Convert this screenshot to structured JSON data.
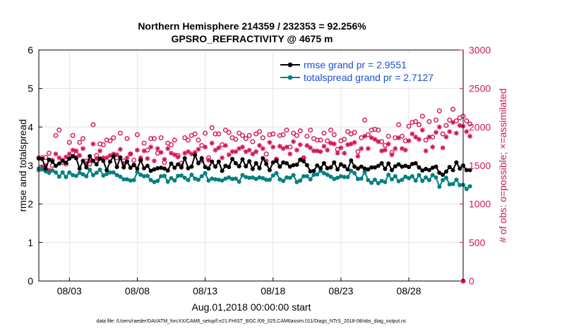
{
  "chart_data": {
    "type": "line",
    "title_line1": "Northern Hemisphere 214359 / 232353 = 92.256%",
    "title_line2": "GPSRO_REFRACTIVITY @ 4675 m",
    "xlabel": "Aug.01,2018 00:00:00 start",
    "ylabel": "rmse and totalspread",
    "ylabel_right": "# of obs: o=possible; ×=assimilated",
    "footnote": "data file: /Users/raeder/DAI/ATM_forcXX/CAM6_setup/f.e21.FHIST_BGC.f09_025.CAM6assim.011/Diags_NTrS_2018-08/obs_diag_output.nc",
    "xlim": [
      0.75,
      32.0
    ],
    "ylim": [
      0,
      6
    ],
    "ylim_right": [
      0,
      3000
    ],
    "x_ticks": [
      3,
      8,
      13,
      18,
      23,
      28
    ],
    "x_tick_labels": [
      "08/03",
      "08/08",
      "08/13",
      "08/18",
      "08/23",
      "08/28"
    ],
    "y_ticks": [
      0,
      1,
      2,
      3,
      4,
      5,
      6
    ],
    "y_tick_labels": [
      "0",
      "1",
      "2",
      "3",
      "4",
      "5",
      "6"
    ],
    "y_ticks_right": [
      0,
      500,
      1000,
      1500,
      2000,
      2500,
      3000
    ],
    "y_tick_labels_right": [
      "0",
      "500",
      "1000",
      "1500",
      "2000",
      "2500",
      "3000"
    ],
    "x_step_days": 0.25,
    "legend": [
      "rmse grand pr = 2.9551",
      "totalspread grand pr = 2.7127"
    ],
    "colors": {
      "rmse": "#000000",
      "spread": "#008080",
      "obs": "#d4145a",
      "legend_text": "#1a4fd6",
      "grid": "#e4e4e4"
    },
    "series": [
      {
        "name": "rmse",
        "values": [
          3.18,
          3.17,
          2.92,
          3.15,
          3.1,
          2.99,
          3.05,
          3.12,
          3.07,
          3.18,
          3.24,
          3.19,
          2.92,
          3.12,
          2.95,
          3.24,
          3.12,
          3.03,
          3.18,
          3.12,
          2.88,
          3.1,
          3.24,
          2.96,
          3.21,
          2.95,
          3.1,
          2.94,
          3.01,
          2.92,
          3.14,
          2.93,
          2.99,
          2.86,
          2.9,
          2.93,
          2.94,
          2.92,
          2.87,
          3.05,
          2.94,
          3.03,
          2.95,
          3.19,
          2.93,
          2.97,
          3.27,
          3.06,
          3.19,
          2.96,
          2.92,
          3.1,
          2.97,
          3.1,
          2.86,
          2.99,
          2.96,
          3.17,
          3.06,
          2.98,
          3.16,
          2.98,
          3.11,
          2.91,
          3.06,
          2.93,
          3.19,
          3.04,
          2.88,
          3.08,
          3.12,
          2.97,
          3.08,
          3.06,
          2.97,
          3.01,
          3.02,
          3.15,
          3.11,
          3.01,
          2.85,
          2.86,
          3.0,
          2.93,
          3.06,
          2.93,
          2.95,
          3.08,
          2.9,
          3.03,
          2.98,
          2.9,
          3.13,
          2.97,
          2.92,
          2.97,
          2.92,
          2.9,
          2.95,
          2.95,
          2.99,
          3.06,
          2.91,
          3.05,
          2.88,
          2.98,
          3.03,
          2.97,
          2.99,
          2.96,
          3.04,
          3.06,
          2.95,
          2.87,
          2.91,
          2.88,
          2.94,
          2.97,
          2.81,
          2.76,
          2.84,
          2.96,
          2.88,
          3.08,
          2.92,
          3.0,
          2.88,
          2.88
        ]
      },
      {
        "name": "totalspread",
        "values": [
          2.92,
          2.9,
          2.85,
          2.81,
          2.87,
          2.82,
          2.71,
          2.82,
          2.7,
          2.82,
          2.75,
          2.73,
          2.81,
          2.77,
          2.72,
          2.89,
          2.75,
          2.81,
          2.89,
          2.74,
          2.78,
          2.82,
          2.82,
          2.75,
          2.71,
          2.64,
          2.64,
          2.61,
          2.62,
          2.83,
          2.76,
          2.72,
          2.73,
          2.62,
          2.57,
          2.6,
          2.72,
          2.73,
          2.58,
          2.67,
          2.61,
          2.73,
          2.74,
          2.68,
          2.62,
          2.76,
          2.66,
          2.63,
          2.72,
          2.8,
          2.61,
          2.66,
          2.64,
          2.63,
          2.61,
          2.66,
          2.69,
          2.65,
          2.66,
          2.58,
          2.75,
          2.7,
          2.68,
          2.69,
          2.65,
          2.69,
          2.67,
          2.63,
          2.63,
          2.74,
          2.8,
          2.64,
          2.6,
          2.69,
          2.68,
          2.75,
          2.57,
          2.61,
          2.72,
          2.72,
          2.64,
          2.76,
          2.77,
          2.86,
          2.8,
          2.76,
          2.71,
          2.65,
          2.68,
          2.72,
          2.7,
          2.7,
          2.86,
          2.8,
          2.65,
          2.66,
          2.83,
          2.62,
          2.55,
          2.63,
          2.54,
          2.6,
          2.57,
          2.76,
          2.64,
          2.72,
          2.59,
          2.63,
          2.71,
          2.67,
          2.72,
          2.61,
          2.75,
          2.6,
          2.69,
          2.62,
          2.75,
          2.69,
          2.45,
          2.62,
          2.68,
          2.51,
          2.52,
          2.63,
          2.49,
          2.5,
          2.39,
          2.46
        ]
      },
      {
        "name": "possible",
        "values": [
          1600,
          1600,
          1605,
          1660,
          1500,
          1890,
          1960,
          1540,
          1520,
          1800,
          1890,
          1650,
          1800,
          1850,
          1560,
          1520,
          2030,
          1630,
          1780,
          1770,
          1830,
          1820,
          1860,
          1600,
          1920,
          1560,
          1850,
          1650,
          1570,
          1900,
          1570,
          1790,
          1700,
          1850,
          1850,
          1660,
          1860,
          1540,
          1790,
          1770,
          1830,
          1630,
          1530,
          1860,
          1830,
          1890,
          1910,
          1830,
          1760,
          1920,
          1600,
          1990,
          1910,
          1910,
          1770,
          1960,
          1930,
          1860,
          1840,
          1920,
          1890,
          1850,
          1890,
          1810,
          1910,
          1940,
          1860,
          1650,
          1900,
          1910,
          1580,
          1890,
          1900,
          1960,
          1740,
          1920,
          1890,
          1950,
          1600,
          1880,
          1960,
          1850,
          1830,
          1830,
          1920,
          1820,
          1960,
          1900,
          1710,
          1820,
          1840,
          1940,
          1910,
          1930,
          1680,
          1860,
          2090,
          1900,
          1960,
          1970,
          1960,
          1810,
          1760,
          1880,
          1670,
          1860,
          2030,
          1880,
          1820,
          2010,
          2060,
          2070,
          2030,
          2140,
          1830,
          2070,
          1870,
          2090,
          2210,
          1910,
          2020,
          2090,
          2230,
          2080,
          2120,
          2140,
          2080,
          2040
        ]
      },
      {
        "name": "assimilated",
        "values": [
          1440,
          1480,
          1500,
          1440,
          1570,
          1650,
          1600,
          1570,
          1610,
          1650,
          1700,
          1690,
          1630,
          1720,
          1530,
          1560,
          1780,
          1590,
          1690,
          1600,
          1600,
          1630,
          1650,
          1640,
          1710,
          1530,
          1600,
          1650,
          1510,
          1700,
          1600,
          1690,
          1590,
          1740,
          1560,
          1720,
          1670,
          1580,
          1720,
          1660,
          1640,
          1610,
          1500,
          1660,
          1680,
          1650,
          1670,
          1710,
          1560,
          1740,
          1570,
          1790,
          1700,
          1730,
          1600,
          1760,
          1640,
          1680,
          1680,
          1720,
          1740,
          1680,
          1700,
          1650,
          1680,
          1760,
          1720,
          1560,
          1800,
          1740,
          1580,
          1750,
          1720,
          1740,
          1650,
          1810,
          1700,
          1770,
          1590,
          1760,
          1730,
          1690,
          1690,
          1680,
          1750,
          1700,
          1790,
          1780,
          1660,
          1730,
          1660,
          1770,
          1780,
          1800,
          1620,
          1720,
          1880,
          1720,
          1860,
          1840,
          1810,
          1690,
          1700,
          1780,
          1640,
          1720,
          1860,
          1720,
          1700,
          1820,
          1910,
          1870,
          1840,
          1960,
          1690,
          1870,
          1740,
          1930,
          2000,
          1730,
          1870,
          1940,
          2060,
          1920,
          2020,
          2010,
          1940,
          1880
        ]
      }
    ]
  }
}
